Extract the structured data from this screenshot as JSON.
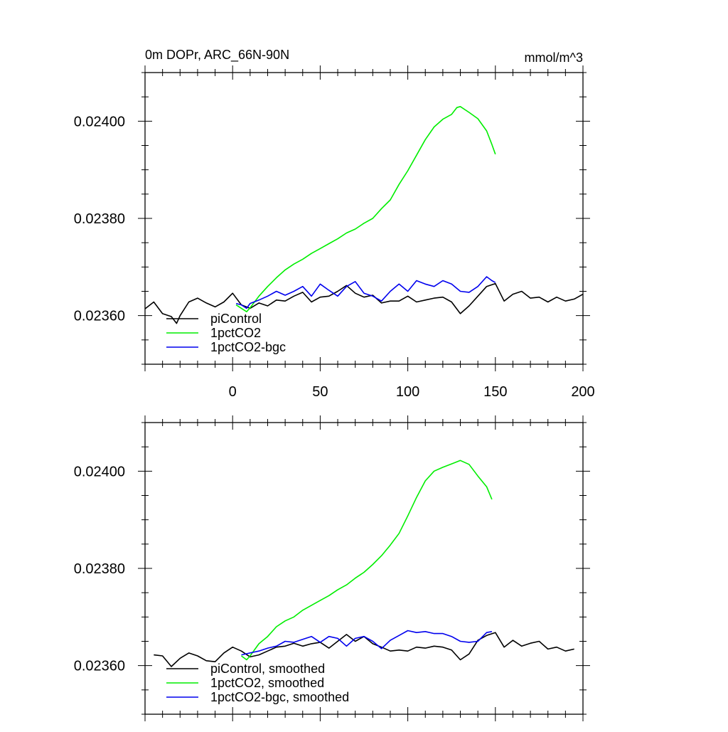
{
  "figure": {
    "title_left": "0m DOPr, ARC_66N-90N",
    "title_right": "mmol/m^3"
  },
  "colors": {
    "piControl": "#000000",
    "1pctCO2": "#00ee00",
    "1pctCO2-bgc": "#0000ee"
  },
  "chart_data": [
    {
      "type": "line",
      "panel": "top",
      "title": "0m DOPr, ARC_66N-90N",
      "units": "mmol/m^3",
      "xlim": [
        -50,
        200
      ],
      "ylim": [
        0.0235,
        0.0241
      ],
      "xticks": [
        0,
        50,
        100,
        150,
        200
      ],
      "xtick_labels": [
        "0",
        "50",
        "100",
        "150",
        "200"
      ],
      "yticks": [
        0.0236,
        0.0238,
        0.024
      ],
      "ytick_labels": [
        "0.02360",
        "0.02380",
        "0.02400"
      ],
      "legend_position": "bottom-left",
      "series": [
        {
          "name": "piControl",
          "color": "#000000",
          "x": [
            -50,
            -45,
            -40,
            -35,
            -32,
            -30,
            -25,
            -20,
            -15,
            -10,
            -5,
            0,
            5,
            10,
            15,
            20,
            25,
            30,
            35,
            40,
            45,
            50,
            55,
            60,
            65,
            70,
            75,
            80,
            85,
            90,
            95,
            100,
            105,
            110,
            115,
            120,
            125,
            130,
            135,
            140,
            145,
            150,
            155,
            160,
            165,
            170,
            175,
            180,
            185,
            190,
            195,
            200
          ],
          "values": [
            0.023614,
            0.023628,
            0.023604,
            0.023598,
            0.023584,
            0.0236,
            0.023628,
            0.023636,
            0.023626,
            0.023618,
            0.023628,
            0.023646,
            0.023622,
            0.023615,
            0.023626,
            0.02362,
            0.023632,
            0.02363,
            0.02364,
            0.023648,
            0.023628,
            0.023638,
            0.02364,
            0.02365,
            0.023662,
            0.023646,
            0.023638,
            0.023642,
            0.023626,
            0.02363,
            0.02363,
            0.02364,
            0.023628,
            0.023632,
            0.023636,
            0.023638,
            0.023628,
            0.023604,
            0.02362,
            0.02364,
            0.02366,
            0.023666,
            0.02363,
            0.023644,
            0.02365,
            0.023636,
            0.023638,
            0.023628,
            0.023638,
            0.02363,
            0.023634,
            0.023644
          ]
        },
        {
          "name": "1pctCO2",
          "color": "#00ee00",
          "x": [
            2,
            5,
            8,
            10,
            15,
            20,
            25,
            30,
            35,
            40,
            45,
            50,
            55,
            60,
            65,
            70,
            75,
            80,
            85,
            90,
            95,
            100,
            105,
            110,
            115,
            120,
            125,
            128,
            130,
            135,
            140,
            145,
            148,
            150
          ],
          "values": [
            0.023622,
            0.023615,
            0.023608,
            0.023616,
            0.02364,
            0.02366,
            0.023678,
            0.023694,
            0.023706,
            0.023716,
            0.023728,
            0.023738,
            0.023748,
            0.023758,
            0.02377,
            0.023778,
            0.02379,
            0.0238,
            0.02382,
            0.023838,
            0.02387,
            0.023898,
            0.02393,
            0.023962,
            0.023988,
            0.024004,
            0.024014,
            0.024028,
            0.02403,
            0.024018,
            0.024005,
            0.02398,
            0.023952,
            0.023932
          ]
        },
        {
          "name": "1pctCO2-bgc",
          "color": "#0000ee",
          "x": [
            2,
            5,
            8,
            10,
            15,
            20,
            25,
            30,
            35,
            40,
            45,
            50,
            55,
            60,
            65,
            70,
            75,
            80,
            85,
            90,
            95,
            100,
            105,
            110,
            115,
            120,
            125,
            130,
            135,
            140,
            145,
            148,
            150
          ],
          "values": [
            0.023625,
            0.023622,
            0.023615,
            0.023625,
            0.023632,
            0.02364,
            0.02365,
            0.023642,
            0.02365,
            0.02366,
            0.02364,
            0.023665,
            0.023652,
            0.02364,
            0.02366,
            0.02367,
            0.023646,
            0.02364,
            0.02363,
            0.02365,
            0.023665,
            0.02365,
            0.023672,
            0.023665,
            0.02366,
            0.023672,
            0.023665,
            0.02365,
            0.023648,
            0.02366,
            0.02368,
            0.023672,
            0.023668
          ]
        }
      ]
    },
    {
      "type": "line",
      "panel": "bottom",
      "xlim": [
        -50,
        200
      ],
      "ylim": [
        0.0235,
        0.0241
      ],
      "xticks": [
        0,
        50,
        100,
        150,
        200
      ],
      "yticks": [
        0.0236,
        0.0238,
        0.024
      ],
      "ytick_labels": [
        "0.02360",
        "0.02380",
        "0.02400"
      ],
      "legend_position": "bottom-left",
      "series": [
        {
          "name": "piControl, smoothed",
          "color": "#000000",
          "x": [
            -45,
            -40,
            -35,
            -30,
            -25,
            -20,
            -15,
            -10,
            -5,
            0,
            5,
            10,
            15,
            20,
            25,
            30,
            35,
            40,
            45,
            50,
            55,
            60,
            65,
            70,
            75,
            80,
            85,
            90,
            95,
            100,
            105,
            110,
            115,
            120,
            125,
            130,
            135,
            140,
            145,
            150,
            155,
            160,
            165,
            170,
            175,
            180,
            185,
            190,
            195
          ],
          "values": [
            0.023622,
            0.02362,
            0.023598,
            0.023615,
            0.023626,
            0.02362,
            0.02361,
            0.023608,
            0.023626,
            0.023638,
            0.02363,
            0.023618,
            0.023622,
            0.02363,
            0.023638,
            0.02364,
            0.023646,
            0.02364,
            0.023645,
            0.023648,
            0.023636,
            0.02365,
            0.023664,
            0.02365,
            0.02366,
            0.023645,
            0.023638,
            0.02363,
            0.023632,
            0.02363,
            0.023638,
            0.023636,
            0.02364,
            0.023638,
            0.023632,
            0.023612,
            0.023624,
            0.023652,
            0.023662,
            0.023668,
            0.023638,
            0.023652,
            0.02364,
            0.023646,
            0.02365,
            0.023634,
            0.023638,
            0.02363,
            0.023634
          ]
        },
        {
          "name": "1pctCO2, smoothed",
          "color": "#00ee00",
          "x": [
            5,
            8,
            10,
            15,
            20,
            25,
            30,
            35,
            40,
            45,
            50,
            55,
            60,
            65,
            70,
            75,
            80,
            85,
            90,
            95,
            100,
            105,
            110,
            115,
            120,
            125,
            130,
            135,
            140,
            145,
            148
          ],
          "values": [
            0.02362,
            0.023612,
            0.02362,
            0.023645,
            0.02366,
            0.02368,
            0.023692,
            0.0237,
            0.023714,
            0.023724,
            0.023734,
            0.023744,
            0.023756,
            0.023766,
            0.02378,
            0.023792,
            0.023808,
            0.023826,
            0.023848,
            0.023872,
            0.023908,
            0.023946,
            0.02398,
            0.024,
            0.024008,
            0.024015,
            0.024022,
            0.024014,
            0.02399,
            0.023968,
            0.023942
          ]
        },
        {
          "name": "1pctCO2-bgc, smoothed",
          "color": "#0000ee",
          "x": [
            5,
            10,
            15,
            20,
            25,
            30,
            35,
            40,
            45,
            50,
            55,
            60,
            65,
            70,
            75,
            80,
            85,
            90,
            95,
            100,
            105,
            110,
            115,
            120,
            125,
            130,
            135,
            140,
            145,
            148
          ],
          "values": [
            0.023622,
            0.023626,
            0.02363,
            0.023636,
            0.02364,
            0.02365,
            0.023648,
            0.023654,
            0.02366,
            0.023648,
            0.02366,
            0.023656,
            0.02364,
            0.023656,
            0.02366,
            0.02365,
            0.023635,
            0.023652,
            0.023662,
            0.023672,
            0.023668,
            0.02367,
            0.023666,
            0.023666,
            0.02366,
            0.02365,
            0.023648,
            0.02365,
            0.023668,
            0.02367
          ]
        }
      ]
    }
  ]
}
